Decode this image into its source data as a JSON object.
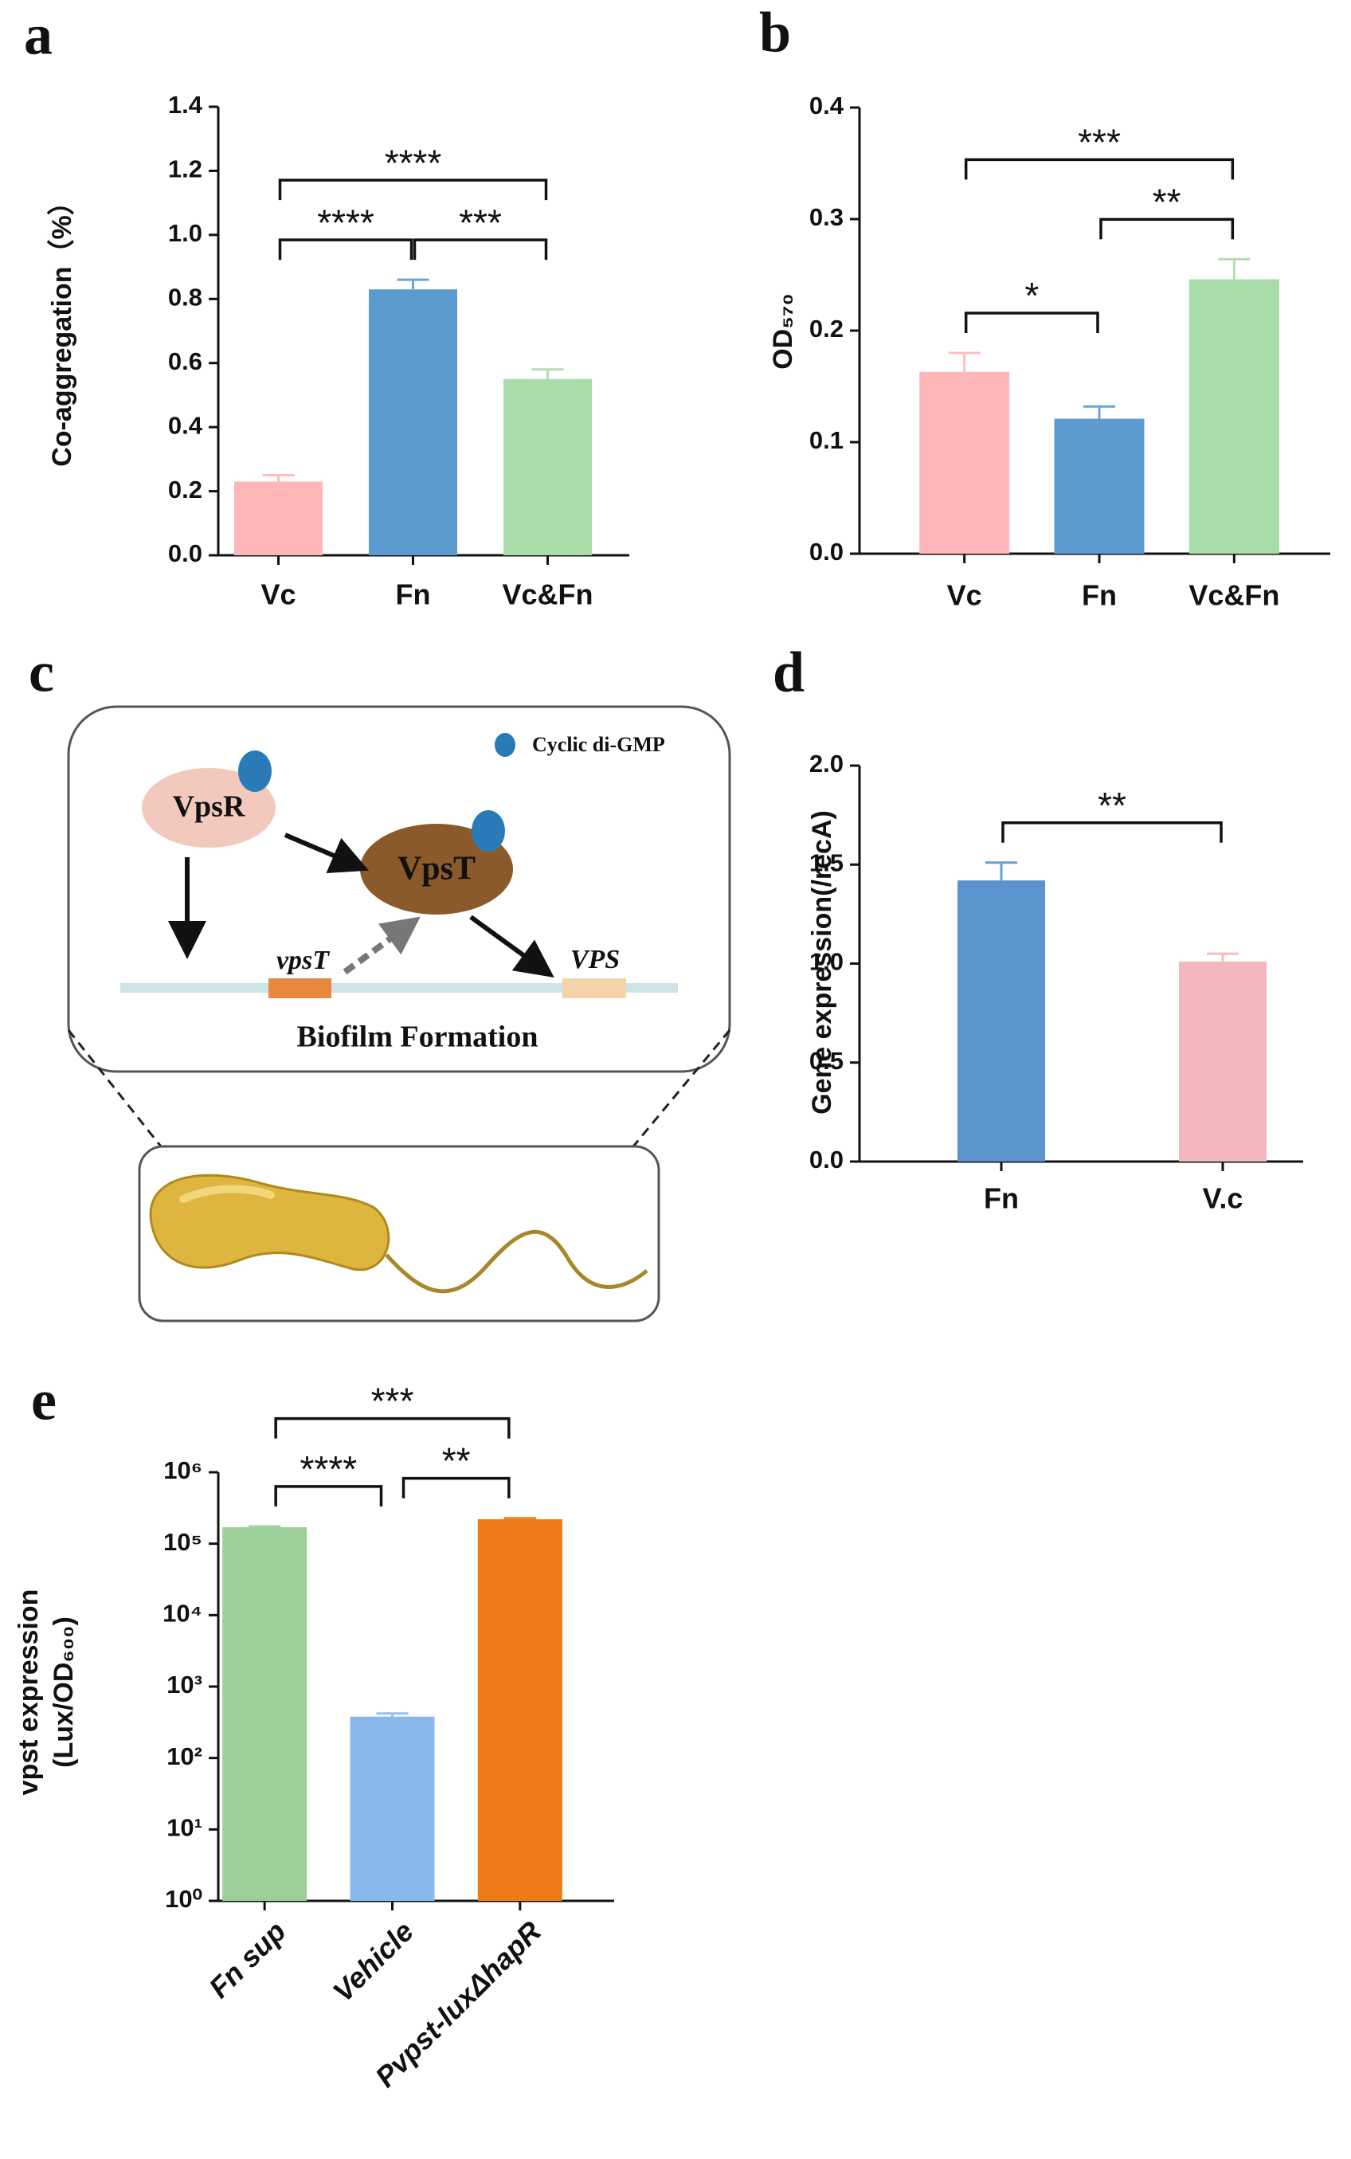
{
  "chart_data": [
    {
      "type": "bar",
      "panel": "a",
      "ylabel": "Co-aggregation（%）",
      "categories": [
        "Vc",
        "Fn",
        "Vc&Fn"
      ],
      "values": [
        0.23,
        0.83,
        0.55
      ],
      "errors": [
        0.02,
        0.03,
        0.03
      ],
      "colors": [
        "#ffb6b9",
        "#5b9bd0",
        "#a8dca8"
      ],
      "ylim": [
        0,
        1.4
      ],
      "yticks": [
        {
          "value": 0,
          "label": "0.0"
        },
        0.2,
        0.4,
        0.6,
        0.8,
        {
          "value": 1,
          "label": "1.0"
        },
        1.2,
        1.4
      ],
      "comparisons": [
        {
          "pair": [
            "Vc",
            "Fn"
          ],
          "label": "****"
        },
        {
          "pair": [
            "Fn",
            "Vc&Fn"
          ],
          "label": "***"
        },
        {
          "pair": [
            "Vc",
            "Vc&Fn"
          ],
          "label": "****"
        }
      ]
    },
    {
      "type": "bar",
      "panel": "b",
      "ylabel": "OD₅₇₀",
      "categories": [
        "Vc",
        "Fn",
        "Vc&Fn"
      ],
      "values": [
        0.163,
        0.121,
        0.246
      ],
      "errors": [
        0.017,
        0.011,
        0.018
      ],
      "colors": [
        "#ffb6b9",
        "#5b9bd0",
        "#a8dca8"
      ],
      "ylim": [
        0,
        0.4
      ],
      "yticks": [
        {
          "value": 0,
          "label": "0.0"
        },
        0.1,
        0.2,
        0.3,
        0.4
      ],
      "comparisons": [
        {
          "pair": [
            "Vc",
            "Fn"
          ],
          "label": "*"
        },
        {
          "pair": [
            "Fn",
            "Vc&Fn"
          ],
          "label": "**"
        },
        {
          "pair": [
            "Vc",
            "Vc&Fn"
          ],
          "label": "***"
        }
      ]
    },
    {
      "type": "bar",
      "panel": "d",
      "ylabel": "Gene expression(/recA)",
      "categories": [
        "Fn",
        "V.c"
      ],
      "values": [
        1.42,
        1.01
      ],
      "errors": [
        0.09,
        0.04
      ],
      "colors": [
        "#5b93cf",
        "#f4b6bd"
      ],
      "ylim": [
        0,
        2
      ],
      "yticks": [
        {
          "value": 0,
          "label": "0.0"
        },
        {
          "value": 0.5,
          "label": "0.5"
        },
        {
          "value": 1,
          "label": "1.0"
        },
        {
          "value": 1.5,
          "label": "1.5"
        },
        {
          "value": 2,
          "label": "2.0"
        }
      ],
      "comparisons": [
        {
          "pair": [
            "Fn",
            "V.c"
          ],
          "label": "**"
        }
      ]
    },
    {
      "type": "bar",
      "panel": "e",
      "ylabel": [
        "vpst expression",
        "(Lux/OD₆₀₀)"
      ],
      "yscale": "log",
      "categories": [
        "Fn sup",
        "Vehicle",
        "Pvpst-luxΔhapR"
      ],
      "values": [
        170000,
        380,
        220000
      ],
      "errors": [
        5000,
        40,
        8000
      ],
      "colors": [
        "#9ccf98",
        "#88b9ea",
        "#ed7a17"
      ],
      "ylim": [
        1,
        1000000
      ],
      "yticks": [
        {
          "value": 1,
          "label": "10⁰"
        },
        {
          "value": 10,
          "label": "10¹"
        },
        {
          "value": 100,
          "label": "10²"
        },
        {
          "value": 1000,
          "label": "10³"
        },
        {
          "value": 10000,
          "label": "10⁴"
        },
        {
          "value": 100000,
          "label": "10⁵"
        },
        {
          "value": 1000000,
          "label": "10⁶"
        }
      ],
      "comparisons": [
        {
          "pair": [
            "Fn sup",
            "Vehicle"
          ],
          "label": "****"
        },
        {
          "pair": [
            "Vehicle",
            "Pvpst-luxΔhapR"
          ],
          "label": "**"
        },
        {
          "pair": [
            "Fn sup",
            "Pvpst-luxΔhapR"
          ],
          "label": "***"
        }
      ]
    }
  ],
  "diagram": {
    "panel": "c",
    "legend": "Cyclic di-GMP",
    "nodes": [
      "VpsR",
      "VpsT"
    ],
    "genes": [
      "vpsT",
      "VPS"
    ],
    "caption": "Biofilm Formation"
  }
}
